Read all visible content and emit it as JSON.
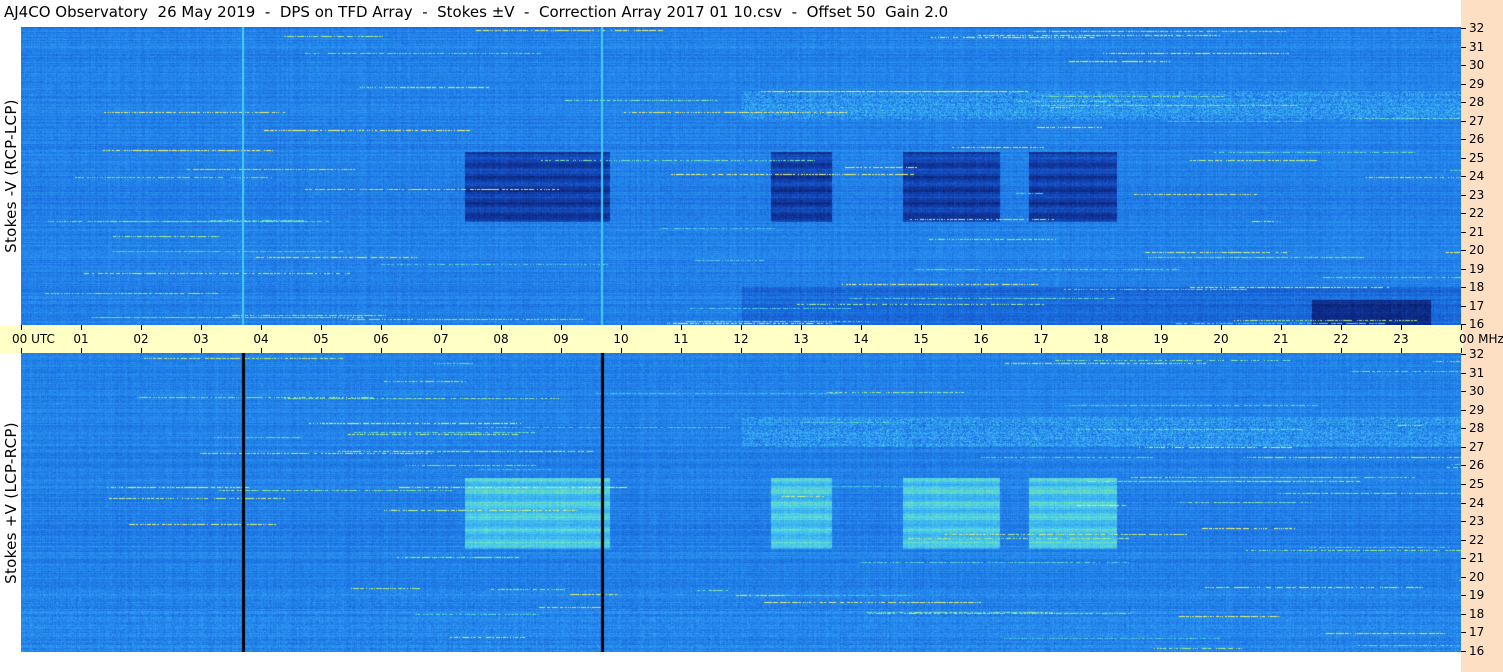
{
  "title": "AJ4CO Observatory  26 May 2019  -  DPS on TFD Array  -  Stokes ±V  -  Correction Array 2017 01 10.csv  -  Offset 50  Gain 2.0",
  "chart_data": [
    {
      "type": "heatmap",
      "panel": "top",
      "ylabel": "Stokes -V (RCP-LCP)",
      "x_tick_labels": [
        "00 UTC",
        "01",
        "02",
        "03",
        "04",
        "05",
        "06",
        "07",
        "08",
        "09",
        "10",
        "11",
        "12",
        "13",
        "14",
        "15",
        "16",
        "17",
        "18",
        "19",
        "20",
        "21",
        "22",
        "23",
        "00 MHz"
      ],
      "y_tick_labels": [
        "32",
        "31",
        "30",
        "29",
        "28",
        "27",
        "26",
        "25",
        "24",
        "23",
        "22",
        "21",
        "20",
        "19",
        "18",
        "17",
        "16"
      ],
      "x_range_hours_utc": [
        0,
        24
      ],
      "y_range_mhz": [
        16,
        32
      ],
      "colormap": [
        "#0a1f6e",
        "#1240b0",
        "#1a6fe0",
        "#2e9cf5",
        "#4cd0e8",
        "#9cf08a",
        "#f0f070"
      ],
      "dark_time_blocks_hours": [
        [
          7.4,
          9.8
        ],
        [
          12.5,
          13.5
        ],
        [
          14.7,
          16.3
        ],
        [
          16.8,
          18.25
        ]
      ],
      "dark_freq_band_mhz": [
        21.5,
        25.3
      ],
      "vertical_lines_hours": [
        3.7,
        9.68
      ],
      "vertical_line_color": "#3fd0f0"
    },
    {
      "type": "heatmap",
      "panel": "bottom",
      "ylabel": "Stokes +V (LCP-RCP)",
      "x_range_hours_utc": [
        0,
        24
      ],
      "y_tick_labels": [
        "32",
        "31",
        "30",
        "29",
        "28",
        "27",
        "26",
        "25",
        "24",
        "23",
        "22",
        "21",
        "20",
        "19",
        "18",
        "17",
        "16"
      ],
      "y_range_mhz": [
        16,
        32
      ],
      "colormap": [
        "#0a1f6e",
        "#1240b0",
        "#1a6fe0",
        "#2e9cf5",
        "#4cd0e8",
        "#9cf08a",
        "#f0f070"
      ],
      "bright_time_blocks_hours": [
        [
          7.4,
          9.8
        ],
        [
          12.5,
          13.5
        ],
        [
          14.7,
          16.3
        ],
        [
          16.8,
          18.25
        ]
      ],
      "bright_freq_band_mhz": [
        21.5,
        25.3
      ],
      "vertical_lines_hours": [
        3.7,
        9.68
      ],
      "vertical_line_color": "#000000"
    }
  ]
}
